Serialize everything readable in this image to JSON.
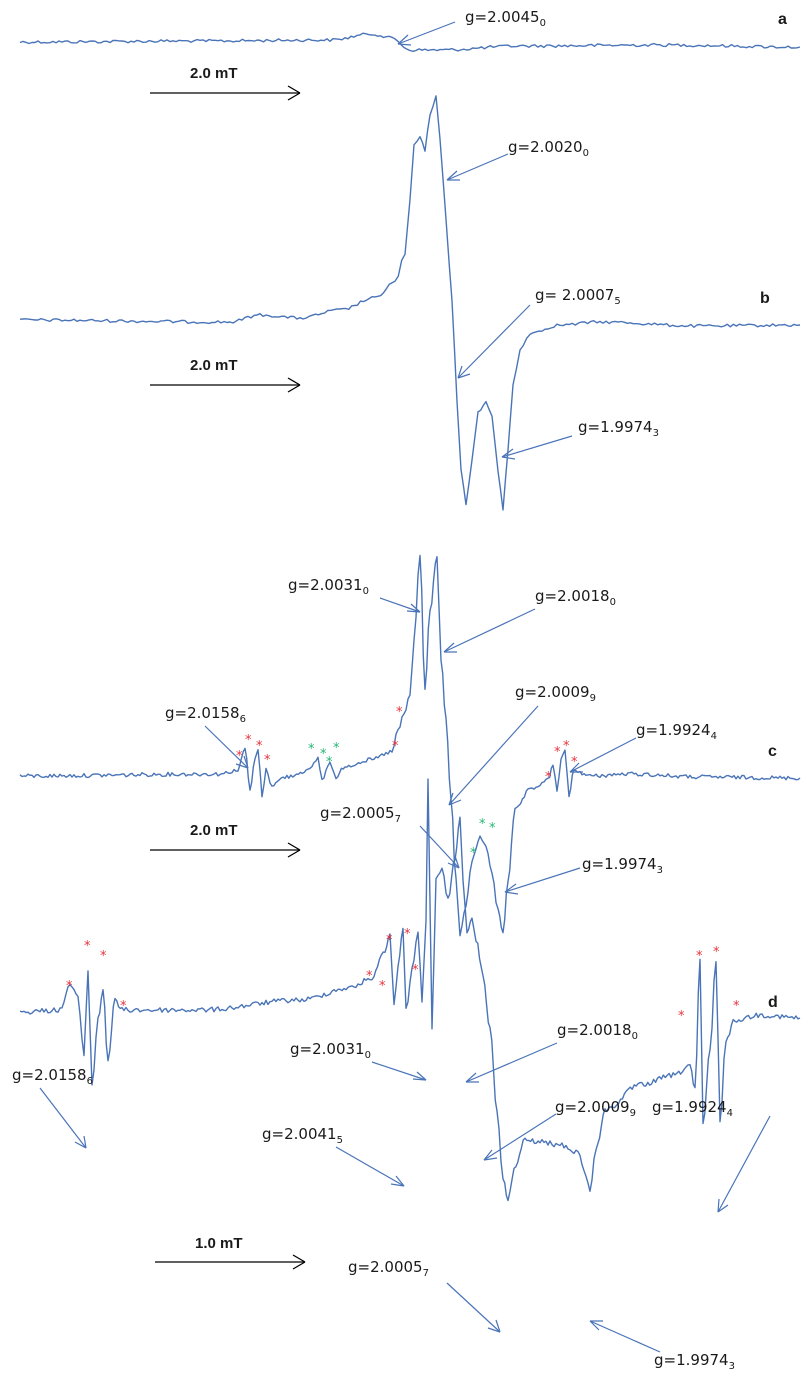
{
  "chart_data": [
    {
      "type": "line",
      "panel": "a",
      "scale_bar": "2.0 mT",
      "annotations": [
        {
          "text": "g=2.0045",
          "sub": "0"
        }
      ],
      "line_color": "#4a74b8"
    },
    {
      "type": "line",
      "panel": "b",
      "scale_bar": "2.0 mT",
      "annotations": [
        {
          "text": "g=2.0020",
          "sub": "0"
        },
        {
          "text": "g= 2.0007",
          "sub": "5"
        },
        {
          "text": "g=1.9974",
          "sub": "3"
        }
      ],
      "line_color": "#4a74b8"
    },
    {
      "type": "line",
      "panel": "c",
      "scale_bar": "2.0 mT",
      "annotations": [
        {
          "text": "g=2.0031",
          "sub": "0"
        },
        {
          "text": "g=2.0018",
          "sub": "0"
        },
        {
          "text": "g=2.0158",
          "sub": "6"
        },
        {
          "text": "g=2.0009",
          "sub": "9"
        },
        {
          "text": "g=1.9924",
          "sub": "4"
        },
        {
          "text": "g=2.0005",
          "sub": "7"
        },
        {
          "text": "g=1.9974",
          "sub": "3"
        }
      ],
      "markers": {
        "red": "*",
        "green": "*"
      },
      "line_color": "#4a74b8"
    },
    {
      "type": "line",
      "panel": "d",
      "scale_bar": "1.0 mT",
      "annotations": [
        {
          "text": "g=2.0031",
          "sub": "0"
        },
        {
          "text": "g=2.0018",
          "sub": "0"
        },
        {
          "text": "g=2.0158",
          "sub": "6"
        },
        {
          "text": "g=2.0009",
          "sub": "9"
        },
        {
          "text": "g=2.0041",
          "sub": "5"
        },
        {
          "text": "g=1.9924",
          "sub": "4"
        },
        {
          "text": "g=2.0005",
          "sub": "7"
        },
        {
          "text": "g=1.9974",
          "sub": "3"
        }
      ],
      "markers": {
        "red": "*"
      },
      "line_color": "#4a74b8"
    }
  ],
  "colors": {
    "trace": "#4a74b8",
    "star_red": "#e8323c",
    "star_green": "#22b573"
  }
}
